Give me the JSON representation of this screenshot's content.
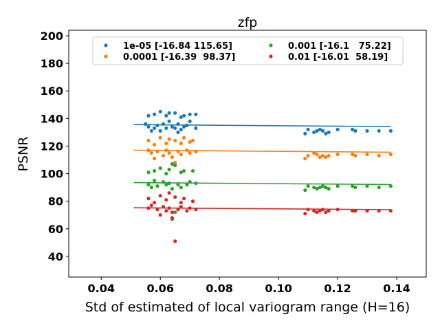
{
  "chart_data": {
    "type": "scatter",
    "title": "zfp",
    "xlabel": "Std of estimated of local variogram range (H=16)",
    "ylabel": "PSNR",
    "xlim": [
      0.029,
      0.15
    ],
    "ylim": [
      25,
      204
    ],
    "xticks": [
      "0.04",
      "0.06",
      "0.08",
      "0.10",
      "0.12",
      "0.14"
    ],
    "xtick_values": [
      0.04,
      0.06,
      0.08,
      0.1,
      0.12,
      0.14
    ],
    "yticks": [
      "40",
      "60",
      "80",
      "100",
      "120",
      "140",
      "160",
      "180",
      "200"
    ],
    "ytick_values": [
      40,
      60,
      80,
      100,
      120,
      140,
      160,
      180,
      200
    ],
    "grid": false,
    "legend_placement": "top-center",
    "series": [
      {
        "name": "1e-05 [-16.84 115.65]",
        "color": "#1f77b4",
        "fit": {
          "slope": -16.84,
          "intercept": 115.65,
          "x_start": 0.051,
          "x_end": 0.138
        },
        "points": [
          [
            0.056,
            142
          ],
          [
            0.058,
            143
          ],
          [
            0.06,
            145
          ],
          [
            0.062,
            142
          ],
          [
            0.063,
            144
          ],
          [
            0.065,
            144
          ],
          [
            0.067,
            141
          ],
          [
            0.068,
            142
          ],
          [
            0.07,
            143
          ],
          [
            0.072,
            143
          ],
          [
            0.056,
            134
          ],
          [
            0.057,
            131
          ],
          [
            0.059,
            135
          ],
          [
            0.061,
            136
          ],
          [
            0.062,
            133
          ],
          [
            0.063,
            138
          ],
          [
            0.064,
            134
          ],
          [
            0.066,
            136
          ],
          [
            0.067,
            132
          ],
          [
            0.069,
            135
          ],
          [
            0.07,
            138
          ],
          [
            0.058,
            133
          ],
          [
            0.06,
            131
          ],
          [
            0.065,
            133
          ],
          [
            0.068,
            134
          ],
          [
            0.072,
            133
          ],
          [
            0.055,
            136
          ],
          [
            0.066,
            130
          ],
          [
            0.109,
            129
          ],
          [
            0.11,
            132
          ],
          [
            0.112,
            130
          ],
          [
            0.113,
            131
          ],
          [
            0.114,
            132
          ],
          [
            0.115,
            131
          ],
          [
            0.116,
            129
          ],
          [
            0.117,
            130
          ],
          [
            0.12,
            132
          ],
          [
            0.125,
            132
          ],
          [
            0.126,
            131
          ],
          [
            0.13,
            131
          ],
          [
            0.134,
            131
          ],
          [
            0.138,
            131
          ]
        ]
      },
      {
        "name": "0.0001 [-16.39  98.37]",
        "color": "#ff7f0e",
        "fit": {
          "slope": -16.39,
          "intercept": 98.37,
          "x_start": 0.051,
          "x_end": 0.138
        },
        "points": [
          [
            0.056,
            124
          ],
          [
            0.058,
            121
          ],
          [
            0.06,
            126
          ],
          [
            0.062,
            122
          ],
          [
            0.063,
            125
          ],
          [
            0.065,
            124
          ],
          [
            0.067,
            122
          ],
          [
            0.068,
            126
          ],
          [
            0.07,
            123
          ],
          [
            0.071,
            124
          ],
          [
            0.056,
            117
          ],
          [
            0.057,
            115
          ],
          [
            0.059,
            116
          ],
          [
            0.061,
            113
          ],
          [
            0.062,
            117
          ],
          [
            0.063,
            115
          ],
          [
            0.064,
            112
          ],
          [
            0.066,
            116
          ],
          [
            0.067,
            114
          ],
          [
            0.069,
            117
          ],
          [
            0.07,
            115
          ],
          [
            0.072,
            116
          ],
          [
            0.058,
            111
          ],
          [
            0.065,
            108
          ],
          [
            0.109,
            111
          ],
          [
            0.11,
            113
          ],
          [
            0.112,
            115
          ],
          [
            0.113,
            114
          ],
          [
            0.114,
            112
          ],
          [
            0.115,
            113
          ],
          [
            0.116,
            112
          ],
          [
            0.117,
            113
          ],
          [
            0.12,
            114
          ],
          [
            0.125,
            114
          ],
          [
            0.126,
            113
          ],
          [
            0.13,
            114
          ],
          [
            0.134,
            113
          ],
          [
            0.138,
            114
          ]
        ]
      },
      {
        "name": "0.001 [-16.1   75.22]",
        "color": "#2ca02c",
        "fit": {
          "slope": -16.1,
          "intercept": 75.22,
          "x_start": 0.051,
          "x_end": 0.138
        },
        "points": [
          [
            0.056,
            101
          ],
          [
            0.058,
            102
          ],
          [
            0.06,
            104
          ],
          [
            0.062,
            100
          ],
          [
            0.063,
            103
          ],
          [
            0.065,
            106
          ],
          [
            0.067,
            101
          ],
          [
            0.068,
            102
          ],
          [
            0.071,
            102
          ],
          [
            0.064,
            107
          ],
          [
            0.056,
            92
          ],
          [
            0.057,
            90
          ],
          [
            0.059,
            91
          ],
          [
            0.061,
            94
          ],
          [
            0.062,
            92
          ],
          [
            0.063,
            93
          ],
          [
            0.064,
            89
          ],
          [
            0.066,
            92
          ],
          [
            0.067,
            90
          ],
          [
            0.069,
            92
          ],
          [
            0.07,
            94
          ],
          [
            0.072,
            93
          ],
          [
            0.058,
            95
          ],
          [
            0.064,
            67
          ],
          [
            0.065,
            72
          ],
          [
            0.109,
            88
          ],
          [
            0.11,
            91
          ],
          [
            0.112,
            90
          ],
          [
            0.113,
            89
          ],
          [
            0.114,
            90
          ],
          [
            0.115,
            91
          ],
          [
            0.116,
            90
          ],
          [
            0.117,
            89
          ],
          [
            0.12,
            91
          ],
          [
            0.125,
            91
          ],
          [
            0.126,
            90
          ],
          [
            0.13,
            91
          ],
          [
            0.134,
            90
          ],
          [
            0.138,
            91
          ]
        ]
      },
      {
        "name": "0.01 [-16.01  58.19]",
        "color": "#d62728",
        "fit": {
          "slope": -16.01,
          "intercept": 58.19,
          "x_start": 0.051,
          "x_end": 0.138
        },
        "points": [
          [
            0.056,
            82
          ],
          [
            0.058,
            79
          ],
          [
            0.06,
            84
          ],
          [
            0.062,
            81
          ],
          [
            0.063,
            86
          ],
          [
            0.065,
            83
          ],
          [
            0.067,
            79
          ],
          [
            0.068,
            82
          ],
          [
            0.071,
            80
          ],
          [
            0.056,
            75
          ],
          [
            0.057,
            77
          ],
          [
            0.059,
            74
          ],
          [
            0.061,
            76
          ],
          [
            0.062,
            73
          ],
          [
            0.063,
            75
          ],
          [
            0.064,
            72
          ],
          [
            0.066,
            74
          ],
          [
            0.067,
            76
          ],
          [
            0.069,
            73
          ],
          [
            0.07,
            75
          ],
          [
            0.072,
            74
          ],
          [
            0.06,
            70
          ],
          [
            0.065,
            51
          ],
          [
            0.064,
            68
          ],
          [
            0.109,
            71
          ],
          [
            0.11,
            74
          ],
          [
            0.112,
            73
          ],
          [
            0.113,
            72
          ],
          [
            0.114,
            73
          ],
          [
            0.115,
            74
          ],
          [
            0.116,
            72
          ],
          [
            0.117,
            73
          ],
          [
            0.12,
            74
          ],
          [
            0.125,
            73
          ],
          [
            0.126,
            73
          ],
          [
            0.13,
            73
          ],
          [
            0.134,
            73
          ],
          [
            0.138,
            73
          ]
        ]
      }
    ]
  }
}
